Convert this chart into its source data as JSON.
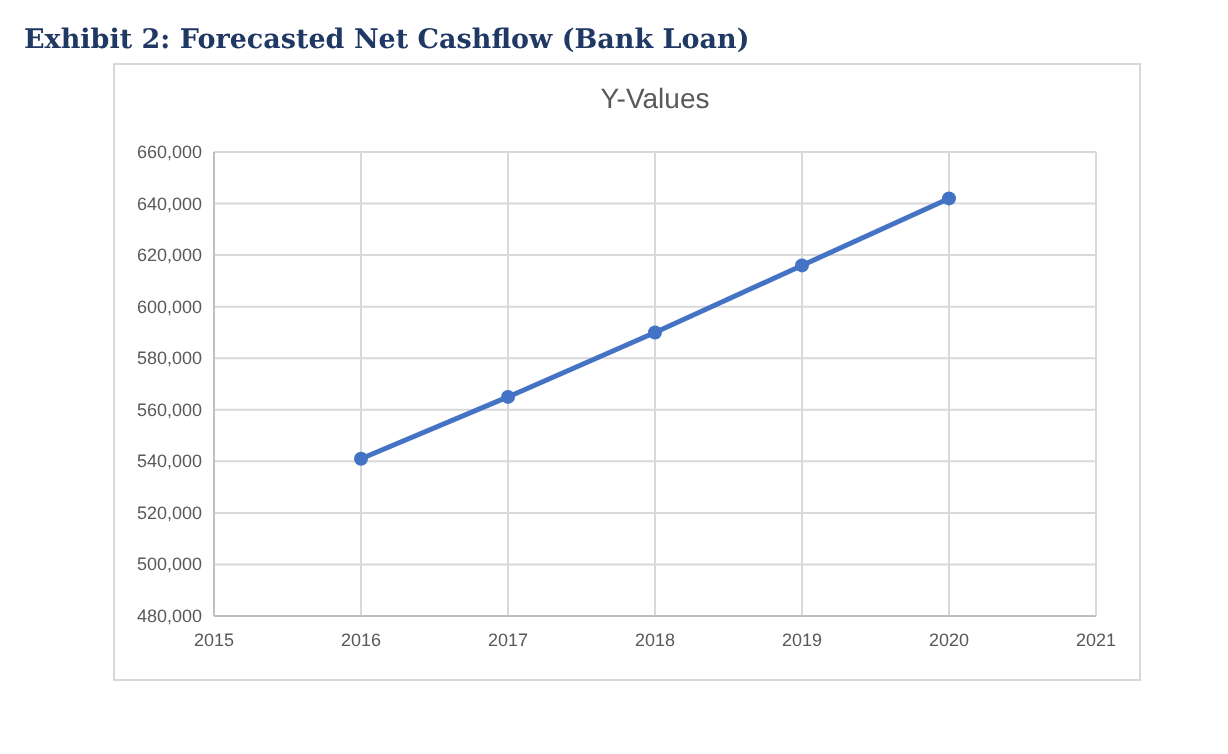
{
  "chart_data": {
    "type": "line",
    "title": "Exhibit 2: Forecasted Net Cashflow (Bank Loan)",
    "subtitle": "Y-Values",
    "x": [
      2016,
      2017,
      2018,
      2019,
      2020
    ],
    "series": [
      {
        "color": "#4472c4",
        "values": [
          541000,
          565000,
          590000,
          616000,
          642000
        ]
      }
    ],
    "xlim": [
      2015,
      2021
    ],
    "xticks": [
      2015,
      2016,
      2017,
      2018,
      2019,
      2020,
      2021
    ],
    "ylim": [
      480000,
      660000
    ],
    "yticks": [
      {
        "value": 480000,
        "label": "480,000"
      },
      {
        "value": 500000,
        "label": "500,000"
      },
      {
        "value": 520000,
        "label": "520,000"
      },
      {
        "value": 540000,
        "label": "540,000"
      },
      {
        "value": 560000,
        "label": "560,000"
      },
      {
        "value": 580000,
        "label": "580,000"
      },
      {
        "value": 600000,
        "label": "600,000"
      },
      {
        "value": 620000,
        "label": "620,000"
      },
      {
        "value": 640000,
        "label": "640,000"
      },
      {
        "value": 660000,
        "label": "660,000"
      }
    ],
    "grid": true,
    "marker": "circle",
    "line_style": "solid"
  }
}
